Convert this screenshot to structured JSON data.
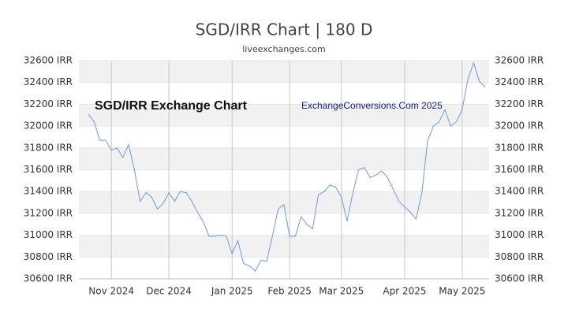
{
  "chart_data": {
    "type": "line",
    "title": "SGD/IRR Chart | 180 D",
    "subtitle": "liveexchanges.com",
    "annotations": [
      "SGD/IRR Exchange Chart",
      "ExchangeConversions.Com 2025"
    ],
    "categories": [
      null,
      null,
      null,
      null,
      "Nov 2024",
      null,
      null,
      null,
      null,
      null,
      null,
      null,
      null,
      null,
      "Dec 2024",
      null,
      null,
      null,
      null,
      null,
      null,
      null,
      null,
      null,
      null,
      "Jan 2025",
      null,
      null,
      null,
      null,
      null,
      null,
      null,
      null,
      null,
      "Feb 2025",
      null,
      null,
      null,
      null,
      null,
      null,
      null,
      null,
      "Mar 2025",
      null,
      null,
      null,
      null,
      null,
      null,
      null,
      null,
      null,
      null,
      "Apr 2025",
      null,
      null,
      null,
      null,
      null,
      null,
      null,
      null,
      null,
      "May 2025",
      null,
      null,
      null,
      null
    ],
    "series": [
      {
        "name": "SGD/IRR",
        "color": "#6f9bd8",
        "values": [
          32110,
          32040,
          31870,
          31870,
          31780,
          31800,
          31710,
          31830,
          31600,
          31310,
          31390,
          31350,
          31240,
          31290,
          31390,
          31310,
          31400,
          31390,
          31310,
          31210,
          31120,
          30990,
          30990,
          31000,
          30990,
          30830,
          30950,
          30740,
          30720,
          30670,
          30770,
          30760,
          30990,
          31240,
          31280,
          30990,
          30990,
          31170,
          31100,
          31060,
          31370,
          31400,
          31460,
          31440,
          31350,
          31130,
          31390,
          31600,
          31620,
          31530,
          31550,
          31590,
          31530,
          31420,
          31310,
          31260,
          31210,
          31150,
          31390,
          31870,
          32000,
          32040,
          32150,
          32000,
          32040,
          32150,
          32430,
          32580,
          32410,
          32360
        ]
      }
    ],
    "ylim": [
      30600,
      32600
    ],
    "yticks": [
      {
        "value": 30600,
        "label": "30600 IRR"
      },
      {
        "value": 30800,
        "label": "30800 IRR"
      },
      {
        "value": 31000,
        "label": "31000 IRR"
      },
      {
        "value": 31200,
        "label": "31200 IRR"
      },
      {
        "value": 31400,
        "label": "31400 IRR"
      },
      {
        "value": 31600,
        "label": "31600 IRR"
      },
      {
        "value": 31800,
        "label": "31800 IRR"
      },
      {
        "value": 32000,
        "label": "32000 IRR"
      },
      {
        "value": 32200,
        "label": "32200 IRR"
      },
      {
        "value": 32400,
        "label": "32400 IRR"
      },
      {
        "value": 32600,
        "label": "32600 IRR"
      }
    ],
    "y2lim": [
      30600,
      32600
    ],
    "y2ticks": [
      {
        "value": 30600,
        "label": "30600 IRR"
      },
      {
        "value": 30800,
        "label": "30800 IRR"
      },
      {
        "value": 31000,
        "label": "31000 IRR"
      },
      {
        "value": 31200,
        "label": "31200 IRR"
      },
      {
        "value": 31400,
        "label": "31400 IRR"
      },
      {
        "value": 31600,
        "label": "31600 IRR"
      },
      {
        "value": 31800,
        "label": "31800 IRR"
      },
      {
        "value": 32000,
        "label": "32000 IRR"
      },
      {
        "value": 32200,
        "label": "32200 IRR"
      },
      {
        "value": 32400,
        "label": "32400 IRR"
      },
      {
        "value": 32600,
        "label": "32600 IRR"
      }
    ],
    "grid": true
  }
}
